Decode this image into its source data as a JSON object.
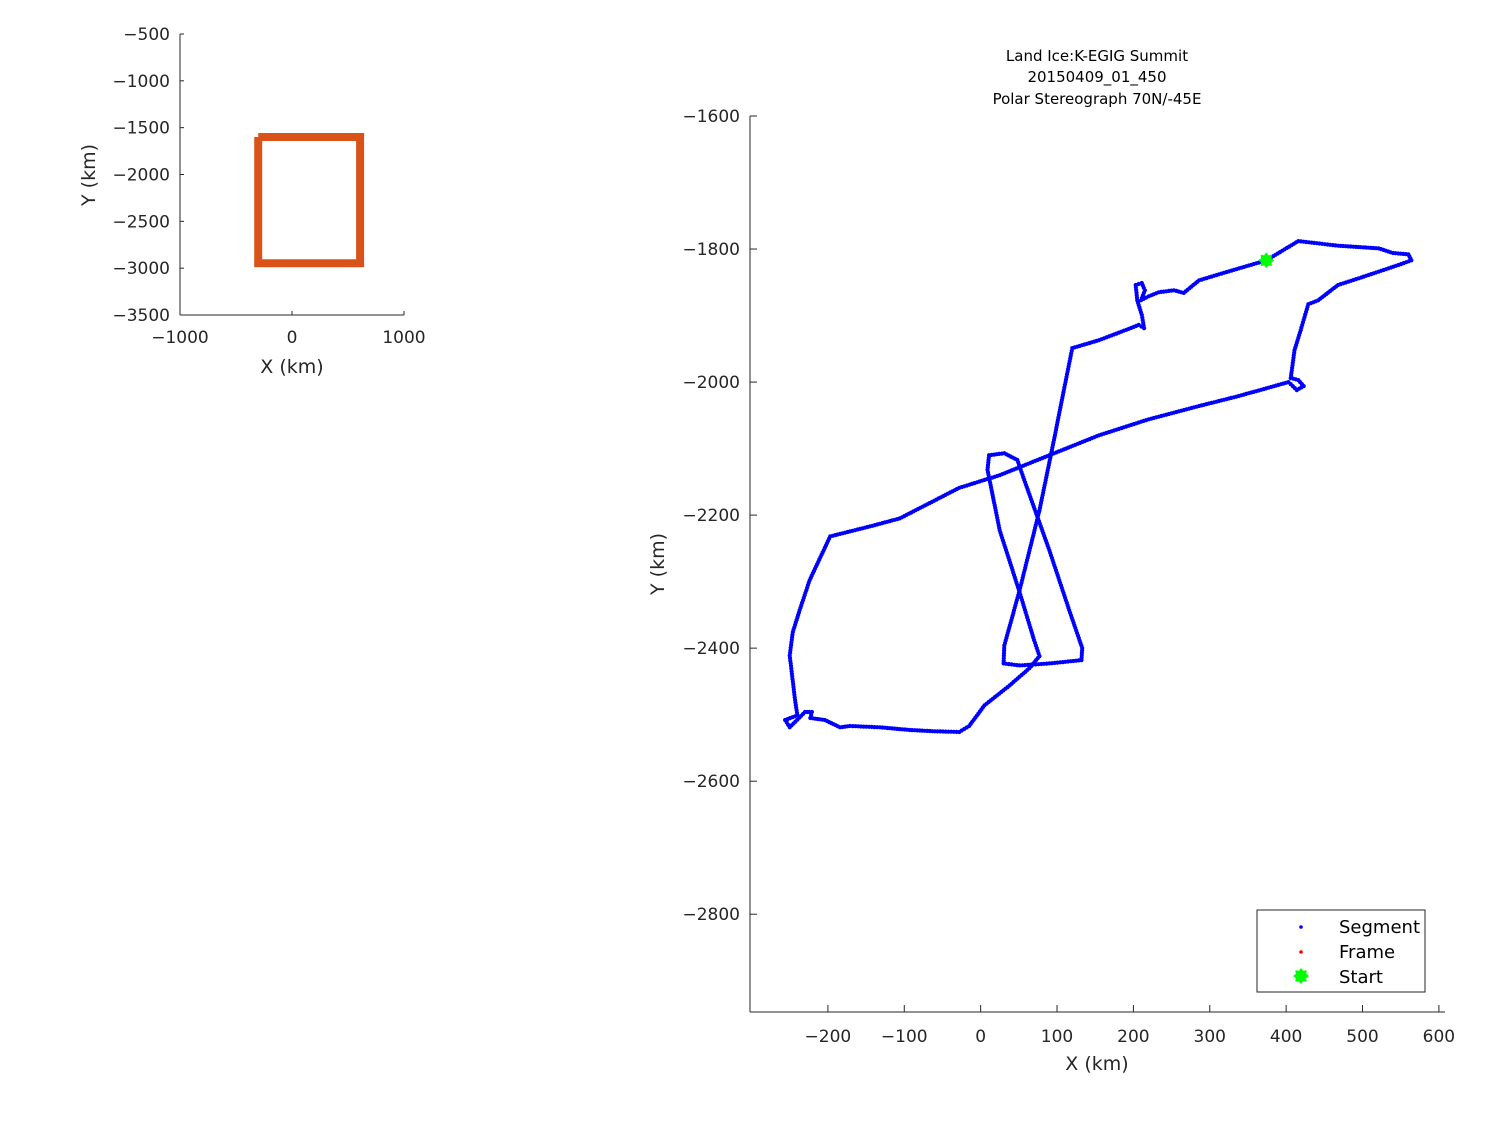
{
  "chart_data": [
    {
      "type": "line",
      "xlabel": "X (km)",
      "ylabel": "Y (km)",
      "xlim": [
        -1000,
        1000
      ],
      "ylim": [
        -3500,
        -500
      ],
      "xticks": [
        -1000,
        0,
        1000
      ],
      "yticks": [
        -500,
        -1000,
        -1500,
        -2000,
        -2500,
        -3000,
        -3500
      ],
      "grid": false,
      "series": [
        {
          "color": "#D95319",
          "x": [
            -302,
            608,
            608,
            -302,
            -302
          ],
          "y": [
            -1600,
            -1600,
            -2947,
            -2947,
            -1600
          ]
        }
      ]
    },
    {
      "type": "scatter",
      "title": [
        "Land Ice:K-EGIG Summit",
        "20150409_01_450",
        "Polar Stereograph 70N/-45E"
      ],
      "xlabel": "X (km)",
      "ylabel": "Y (km)",
      "xlim": [
        -302,
        608
      ],
      "ylim": [
        -2947,
        -1600
      ],
      "xticks": [
        -200,
        -100,
        0,
        100,
        200,
        300,
        400,
        500,
        600
      ],
      "yticks": [
        -1600,
        -1800,
        -2000,
        -2200,
        -2400,
        -2600,
        -2800
      ],
      "grid": false,
      "legend_placement": "bottom-right",
      "series": [
        {
          "name": "Segment",
          "color": "#0000FF",
          "x": [
            374,
            416,
            468,
            521,
            540,
            560,
            564,
            547,
            495,
            468,
            442,
            429,
            419,
            411,
            406,
            416,
            423,
            414,
            406,
            403,
            338,
            286,
            220,
            155,
            90,
            25,
            -28,
            -106,
            -145,
            -197,
            -224,
            -237,
            -246,
            -250,
            -243,
            -240,
            -256,
            -250,
            -230,
            -221,
            -223,
            -204,
            -184,
            -171,
            -132,
            -93,
            -60,
            -28,
            -15,
            5,
            38,
            64,
            77,
            70,
            51,
            25,
            9,
            11,
            31,
            48,
            57,
            90,
            116,
            133,
            132,
            90,
            51,
            30,
            31,
            51,
            77,
            96,
            109,
            120,
            155,
            194,
            207,
            214,
            211,
            205,
            203,
            211,
            215,
            210,
            220,
            233,
            253,
            266,
            286,
            312,
            374
          ],
          "y": [
            -1817,
            -1788,
            -1795,
            -1799,
            -1806,
            -1808,
            -1817,
            -1824,
            -1844,
            -1854,
            -1877,
            -1883,
            -1922,
            -1952,
            -1994,
            -1997,
            -2006,
            -2012,
            -2003,
            -2000,
            -2021,
            -2036,
            -2056,
            -2080,
            -2110,
            -2140,
            -2159,
            -2205,
            -2217,
            -2232,
            -2298,
            -2343,
            -2376,
            -2411,
            -2478,
            -2501,
            -2508,
            -2519,
            -2496,
            -2496,
            -2505,
            -2508,
            -2519,
            -2517,
            -2519,
            -2523,
            -2525,
            -2526,
            -2517,
            -2486,
            -2456,
            -2430,
            -2412,
            -2388,
            -2316,
            -2223,
            -2132,
            -2110,
            -2107,
            -2117,
            -2147,
            -2253,
            -2343,
            -2400,
            -2418,
            -2423,
            -2426,
            -2423,
            -2396,
            -2313,
            -2193,
            -2087,
            -2012,
            -1949,
            -1937,
            -1920,
            -1914,
            -1919,
            -1899,
            -1877,
            -1854,
            -1851,
            -1862,
            -1877,
            -1871,
            -1865,
            -1862,
            -1866,
            -1847,
            -1838,
            -1817
          ]
        },
        {
          "name": "Frame",
          "color": "#FF0000",
          "x": [],
          "y": []
        },
        {
          "name": "Start",
          "color": "#00FF00",
          "x": [
            374
          ],
          "y": [
            -1817
          ]
        }
      ]
    }
  ]
}
